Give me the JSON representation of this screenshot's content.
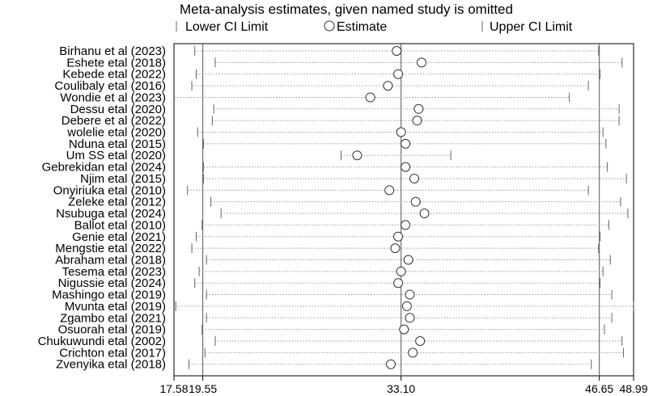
{
  "chart_data": {
    "type": "scatter",
    "title": "Meta-analysis estimates, given named study is omitted",
    "legend": {
      "position": "top",
      "items": [
        {
          "symbol": "tick",
          "label": "Lower CI Limit"
        },
        {
          "symbol": "circle",
          "label": "Estimate"
        },
        {
          "symbol": "tick",
          "label": "Upper CI Limit"
        }
      ]
    },
    "xlim": [
      17.58,
      48.99
    ],
    "x_ticks": [
      {
        "value": 17.58,
        "label": "17.58"
      },
      {
        "value": 19.55,
        "label": "19.55"
      },
      {
        "value": 33.1,
        "label": "33.10"
      },
      {
        "value": 46.65,
        "label": "46.65"
      },
      {
        "value": 48.99,
        "label": "48.99"
      }
    ],
    "reference_lines": [
      19.55,
      33.1,
      46.65
    ],
    "grid": false,
    "studies": [
      {
        "label": "Birhanu et al (2023)",
        "lower": 19.0,
        "estimate": 32.8,
        "upper": 46.6
      },
      {
        "label": "Eshete  etal (2018)",
        "lower": 20.4,
        "estimate": 34.5,
        "upper": 48.2
      },
      {
        "label": "Kebede etal (2022)",
        "lower": 19.1,
        "estimate": 32.9,
        "upper": 46.7
      },
      {
        "label": "Coulibaly etal (2016)",
        "lower": 18.8,
        "estimate": 32.2,
        "upper": 45.9
      },
      {
        "label": "Wondie et al (2023)",
        "lower": 17.6,
        "estimate": 31.0,
        "upper": 44.6
      },
      {
        "label": "Dessu etal (2020)",
        "lower": 20.3,
        "estimate": 34.3,
        "upper": 48.0
      },
      {
        "label": "Debere et al (2022)",
        "lower": 20.2,
        "estimate": 34.2,
        "upper": 48.0
      },
      {
        "label": "wolelie etal (2020)",
        "lower": 19.2,
        "estimate": 33.1,
        "upper": 46.9
      },
      {
        "label": "Nduna etal (2015)",
        "lower": 19.6,
        "estimate": 33.4,
        "upper": 47.1
      },
      {
        "label": "Um SS etal (2020)",
        "lower": 29.0,
        "estimate": 30.1,
        "upper": 36.5
      },
      {
        "label": "Gebrekidan etal (2024)",
        "lower": 19.6,
        "estimate": 33.4,
        "upper": 47.2
      },
      {
        "label": "Njim  etal (2015)",
        "lower": 19.6,
        "estimate": 34.0,
        "upper": 48.5
      },
      {
        "label": "Onyiriuka etal (2010)",
        "lower": 18.5,
        "estimate": 32.3,
        "upper": 45.9
      },
      {
        "label": "Zeleke etal (2012)",
        "lower": 20.1,
        "estimate": 34.1,
        "upper": 48.1
      },
      {
        "label": "Nsubuga etal (2024)",
        "lower": 20.8,
        "estimate": 34.7,
        "upper": 48.6
      },
      {
        "label": "Ballot etal (2010)",
        "lower": 19.5,
        "estimate": 33.4,
        "upper": 47.3
      },
      {
        "label": "Genie etal (2021)",
        "lower": 19.1,
        "estimate": 32.9,
        "upper": 46.7
      },
      {
        "label": "Mengstie etal (2022)",
        "lower": 18.8,
        "estimate": 32.7,
        "upper": 46.6
      },
      {
        "label": "Abraham etal (2018)",
        "lower": 19.8,
        "estimate": 33.6,
        "upper": 47.4
      },
      {
        "label": "Tesema etal (2023)",
        "lower": 19.3,
        "estimate": 33.1,
        "upper": 46.9
      },
      {
        "label": "Nigussie etal (2024)",
        "lower": 19.0,
        "estimate": 32.9,
        "upper": 46.7
      },
      {
        "label": "Mashingo etal (2019)",
        "lower": 19.8,
        "estimate": 33.7,
        "upper": 47.5
      },
      {
        "label": "Mvunta  etal (2019)",
        "lower": 17.7,
        "estimate": 33.5,
        "upper": 49.0
      },
      {
        "label": "Zgambo etal (2021)",
        "lower": 19.8,
        "estimate": 33.7,
        "upper": 47.5
      },
      {
        "label": "Osuorah  etal (2019)",
        "lower": 19.5,
        "estimate": 33.3,
        "upper": 47.0
      },
      {
        "label": "Chukuwundi etal  (2002)",
        "lower": 20.4,
        "estimate": 34.4,
        "upper": 48.2
      },
      {
        "label": "Crichton etal (2017)",
        "lower": 19.7,
        "estimate": 33.9,
        "upper": 48.3
      },
      {
        "label": "Zvenyika etal (2018)",
        "lower": 18.6,
        "estimate": 32.4,
        "upper": 46.1
      }
    ]
  }
}
